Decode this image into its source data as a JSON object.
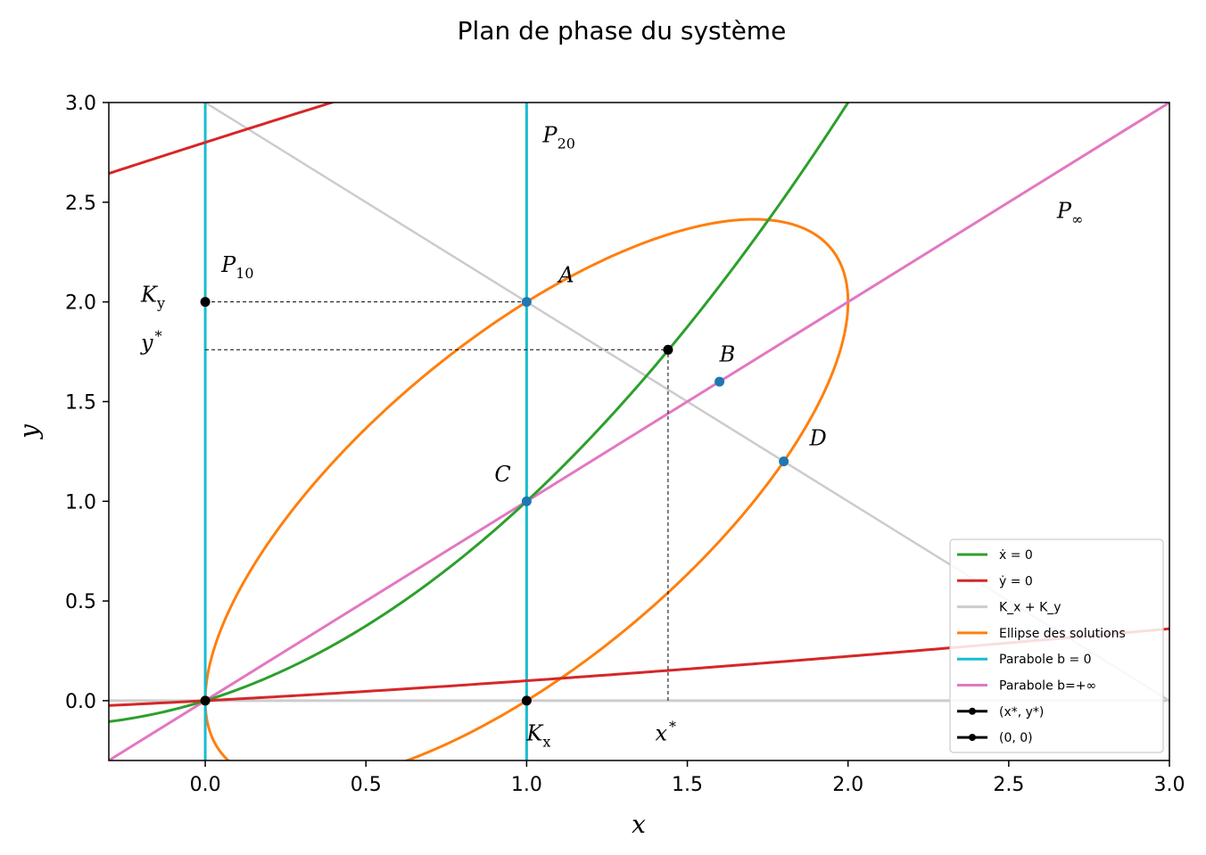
{
  "chart_data": {
    "type": "line",
    "title": "Plan de phase du système",
    "xlabel": "x",
    "ylabel": "y",
    "xlim": [
      -0.3,
      3.0
    ],
    "ylim": [
      -0.3,
      3.0
    ],
    "xticks": [
      0.0,
      0.5,
      1.0,
      1.5,
      2.0,
      2.5,
      3.0
    ],
    "yticks": [
      0.0,
      0.5,
      1.0,
      1.5,
      2.0,
      2.5,
      3.0
    ],
    "xtick_labels": [
      "0.0",
      "0.5",
      "1.0",
      "1.5",
      "2.0",
      "2.5",
      "3.0"
    ],
    "ytick_labels": [
      "0.0",
      "0.5",
      "1.0",
      "1.5",
      "2.0",
      "2.5",
      "3.0"
    ],
    "grid": false,
    "legend_position": "lower right",
    "series": [
      {
        "name": "ẋ = 0",
        "color": "#2ca02c",
        "kind": "curve",
        "equation": "y = 0.5*x*(1+x)",
        "x_range": [
          -0.3,
          2.0
        ]
      },
      {
        "name": "ẏ = 0",
        "color": "#d62728",
        "kind": "conic",
        "equation": "(y - 0.3*x - 1.4)^2 = 1.96 + 0.6*x",
        "x_range": [
          -0.3,
          3.0
        ]
      },
      {
        "name": "K_x + K_y",
        "color": "#cccccc",
        "kind": "line",
        "equation": "y = 3 - x",
        "x_range": [
          0.0,
          3.0
        ]
      },
      {
        "name": "Ellipse des solutions",
        "color": "#ff7f0e",
        "kind": "ellipse",
        "equation": "2*x^2 - 2*x*y + y^2 - 2*x = 0",
        "x_range": [
          -0.3,
          3.0
        ]
      },
      {
        "name": "Parabole b = 0",
        "color": "#17becf",
        "kind": "vlines",
        "x_values": [
          0.0,
          1.0
        ]
      },
      {
        "name": "Parabole b=+∞",
        "color": "#e377c2",
        "kind": "line",
        "equation": "y = x",
        "x_range": [
          -0.3,
          3.0
        ]
      }
    ],
    "horizontal_lines": [
      {
        "y": 0.0,
        "color": "#cccccc"
      }
    ],
    "reference_lines": [
      {
        "from": [
          0.0,
          2.0
        ],
        "to": [
          1.0,
          2.0
        ]
      },
      {
        "from": [
          0.0,
          1.76
        ],
        "to": [
          1.44,
          1.76
        ]
      },
      {
        "from": [
          1.44,
          0.0
        ],
        "to": [
          1.44,
          1.76
        ]
      }
    ],
    "points": [
      {
        "name": "(x*, y*)",
        "x": 1.44,
        "y": 1.76,
        "color": "#000000"
      },
      {
        "name": "(0, 0)",
        "x": 0.0,
        "y": 0.0,
        "color": "#000000"
      },
      {
        "name": "K_y",
        "x": 0.0,
        "y": 2.0,
        "color": "#000000"
      },
      {
        "name": "K_x",
        "x": 1.0,
        "y": 0.0,
        "color": "#000000"
      },
      {
        "name": "A",
        "x": 1.0,
        "y": 2.0,
        "color": "#1f77b4"
      },
      {
        "name": "B",
        "x": 1.6,
        "y": 1.6,
        "color": "#1f77b4"
      },
      {
        "name": "C",
        "x": 1.0,
        "y": 1.0,
        "color": "#1f77b4"
      },
      {
        "name": "D",
        "x": 1.8,
        "y": 1.2,
        "color": "#1f77b4"
      }
    ],
    "annotations": [
      {
        "text": "A",
        "x": 1.1,
        "y": 2.1
      },
      {
        "text": "B",
        "x": 1.6,
        "y": 1.7
      },
      {
        "text": "C",
        "x": 0.9,
        "y": 1.1
      },
      {
        "text": "D",
        "x": 1.88,
        "y": 1.28
      },
      {
        "text": "K",
        "sub": "y",
        "x": -0.2,
        "y": 2.0
      },
      {
        "text": "y",
        "sup": "*",
        "x": -0.2,
        "y": 1.76
      },
      {
        "text": "K",
        "sub": "x",
        "x": 1.0,
        "y": -0.2
      },
      {
        "text": "x",
        "sup": "*",
        "x": 1.4,
        "y": -0.2
      },
      {
        "text": "P",
        "sub": "10",
        "x": 0.05,
        "y": 2.15
      },
      {
        "text": "P",
        "sub": "20",
        "x": 1.05,
        "y": 2.8
      },
      {
        "text": "P",
        "sub": "∞",
        "x": 2.65,
        "y": 2.42
      }
    ],
    "legend": [
      {
        "label": "ẋ = 0",
        "color": "#2ca02c",
        "marker": false
      },
      {
        "label": "ẏ = 0",
        "color": "#d62728",
        "marker": false
      },
      {
        "label": "K_x + K_y",
        "color": "#cccccc",
        "marker": false
      },
      {
        "label": "Ellipse des solutions",
        "color": "#ff7f0e",
        "marker": false
      },
      {
        "label": "Parabole b = 0",
        "color": "#17becf",
        "marker": false
      },
      {
        "label": "Parabole b=+∞",
        "color": "#e377c2",
        "marker": false
      },
      {
        "label": "(x*, y*)",
        "color": "#000000",
        "marker": true
      },
      {
        "label": "(0, 0)",
        "color": "#000000",
        "marker": true
      }
    ]
  }
}
